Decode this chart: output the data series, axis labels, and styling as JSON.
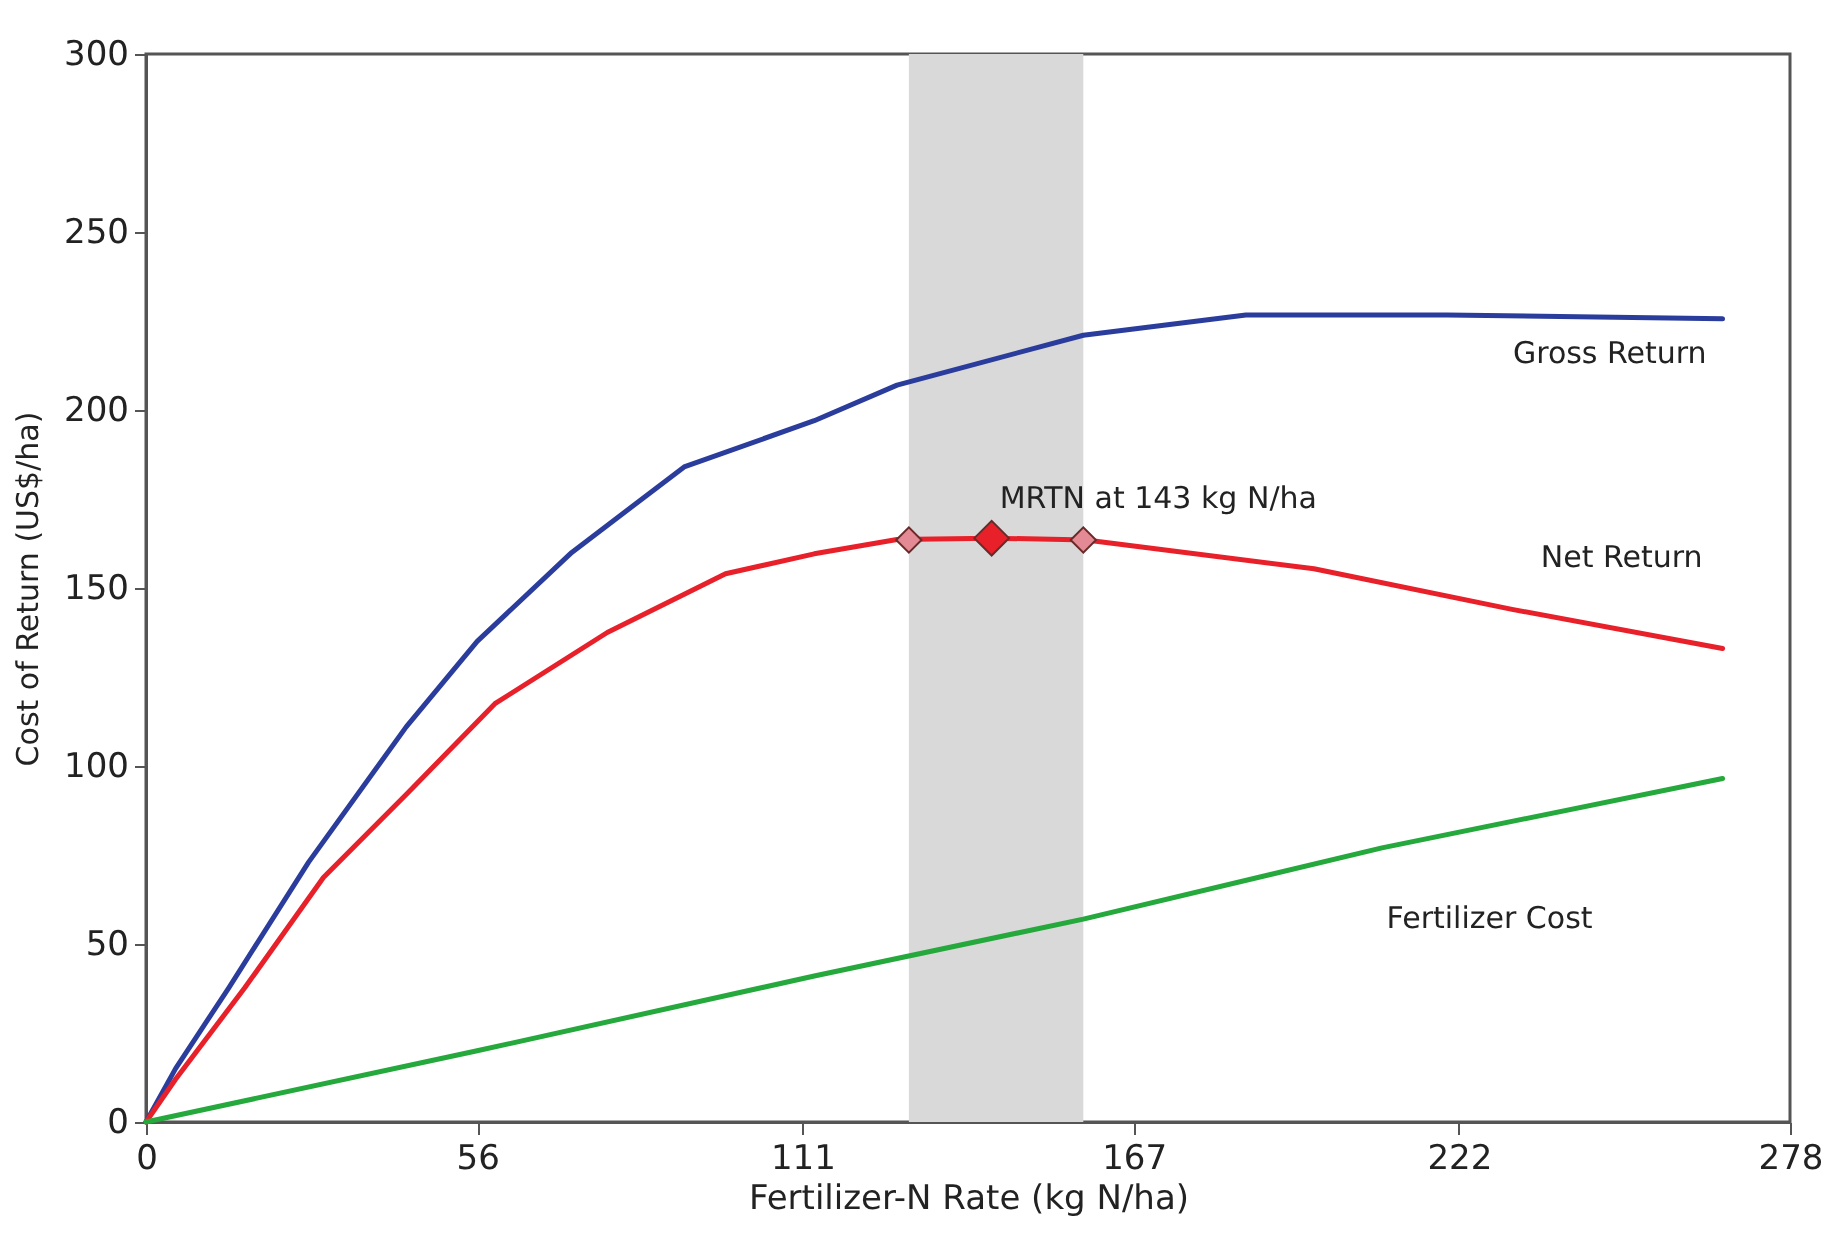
{
  "chart_data": {
    "type": "line",
    "xlabel": "Fertilizer-N Rate (kg N/ha)",
    "ylabel": "Cost of Return (US$/ha)",
    "xlim": [
      0,
      278
    ],
    "xticks": [
      0,
      56,
      111,
      167,
      222,
      278
    ],
    "ylim": [
      0,
      300
    ],
    "yticks": [
      0,
      50,
      100,
      150,
      200,
      250,
      300
    ],
    "grid": false,
    "legend": false,
    "marker": "none",
    "line_style": "solid",
    "bands": [
      {
        "axis": "x",
        "from": 129,
        "to": 158.5,
        "color": "#d9d9d9"
      }
    ],
    "annotations": [
      {
        "text": "MRTN at 143 kg N/ha",
        "x": 143,
        "y": 164
      }
    ],
    "series": [
      {
        "name": "Gross Return",
        "color": "#2b3d9c",
        "x": [
          0,
          5,
          14,
          27.5,
          44,
          56,
          72,
          91,
          113,
          127,
          158.5,
          186,
          220,
          266.6
        ],
        "values": [
          0,
          15,
          37.7,
          73,
          111,
          135,
          160,
          184,
          197,
          207,
          221,
          226.7,
          226.7,
          225.6
        ]
      },
      {
        "name": "Net Return",
        "color": "#e8202a",
        "x": [
          0,
          5,
          16.7,
          30,
          44,
          59,
          78,
          98,
          113,
          127,
          143,
          159,
          197.5,
          231,
          266.6
        ],
        "values": [
          0,
          12,
          37.7,
          68.7,
          92,
          117.5,
          137.5,
          154,
          159.6,
          163.6,
          164,
          163.5,
          155.4,
          144,
          133
        ]
      },
      {
        "name": "Fertilizer Cost",
        "color": "#25a83c",
        "x": [
          0,
          56,
          113,
          158.5,
          209,
          266.6
        ],
        "values": [
          0,
          20,
          41,
          57,
          77,
          96.5
        ]
      },
      {
        "type": "scatter",
        "color": "#e48a94",
        "marker": "diamond",
        "x": [
          129,
          158.5
        ],
        "values": [
          163.5,
          163.5
        ]
      },
      {
        "type": "scatter",
        "color": "#e8202a",
        "marker": "diamond",
        "x": [
          143
        ],
        "values": [
          164
        ]
      }
    ]
  }
}
